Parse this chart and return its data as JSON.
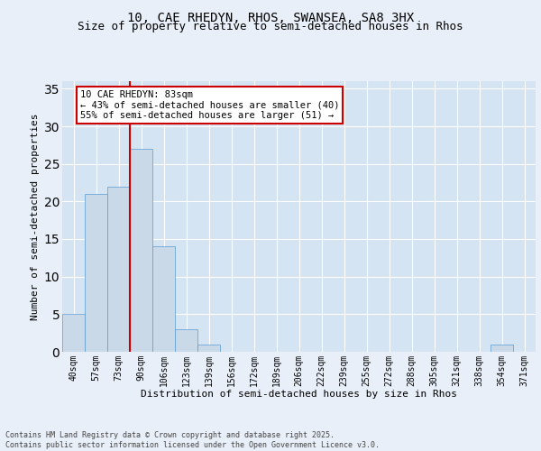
{
  "title1": "10, CAE RHEDYN, RHOS, SWANSEA, SA8 3HX",
  "title2": "Size of property relative to semi-detached houses in Rhos",
  "xlabel": "Distribution of semi-detached houses by size in Rhos",
  "ylabel": "Number of semi-detached properties",
  "categories": [
    "40sqm",
    "57sqm",
    "73sqm",
    "90sqm",
    "106sqm",
    "123sqm",
    "139sqm",
    "156sqm",
    "172sqm",
    "189sqm",
    "206sqm",
    "222sqm",
    "239sqm",
    "255sqm",
    "272sqm",
    "288sqm",
    "305sqm",
    "321sqm",
    "338sqm",
    "354sqm",
    "371sqm"
  ],
  "values": [
    5,
    21,
    22,
    27,
    14,
    3,
    1,
    0,
    0,
    0,
    0,
    0,
    0,
    0,
    0,
    0,
    0,
    0,
    0,
    1,
    0
  ],
  "bar_color": "#c9d9e8",
  "bar_edge_color": "#5b9bd5",
  "highlight_line_color": "#cc0000",
  "annotation_text": "10 CAE RHEDYN: 83sqm\n← 43% of semi-detached houses are smaller (40)\n55% of semi-detached houses are larger (51) →",
  "annotation_box_color": "#cc0000",
  "ylim": [
    0,
    36
  ],
  "yticks": [
    0,
    5,
    10,
    15,
    20,
    25,
    30,
    35
  ],
  "background_color": "#e8eff8",
  "plot_background": "#d5e4f2",
  "grid_color": "#ffffff",
  "footer_text": "Contains HM Land Registry data © Crown copyright and database right 2025.\nContains public sector information licensed under the Open Government Licence v3.0.",
  "title_fontsize": 10,
  "subtitle_fontsize": 9,
  "axis_label_fontsize": 8,
  "tick_fontsize": 7,
  "annotation_fontsize": 7.5
}
